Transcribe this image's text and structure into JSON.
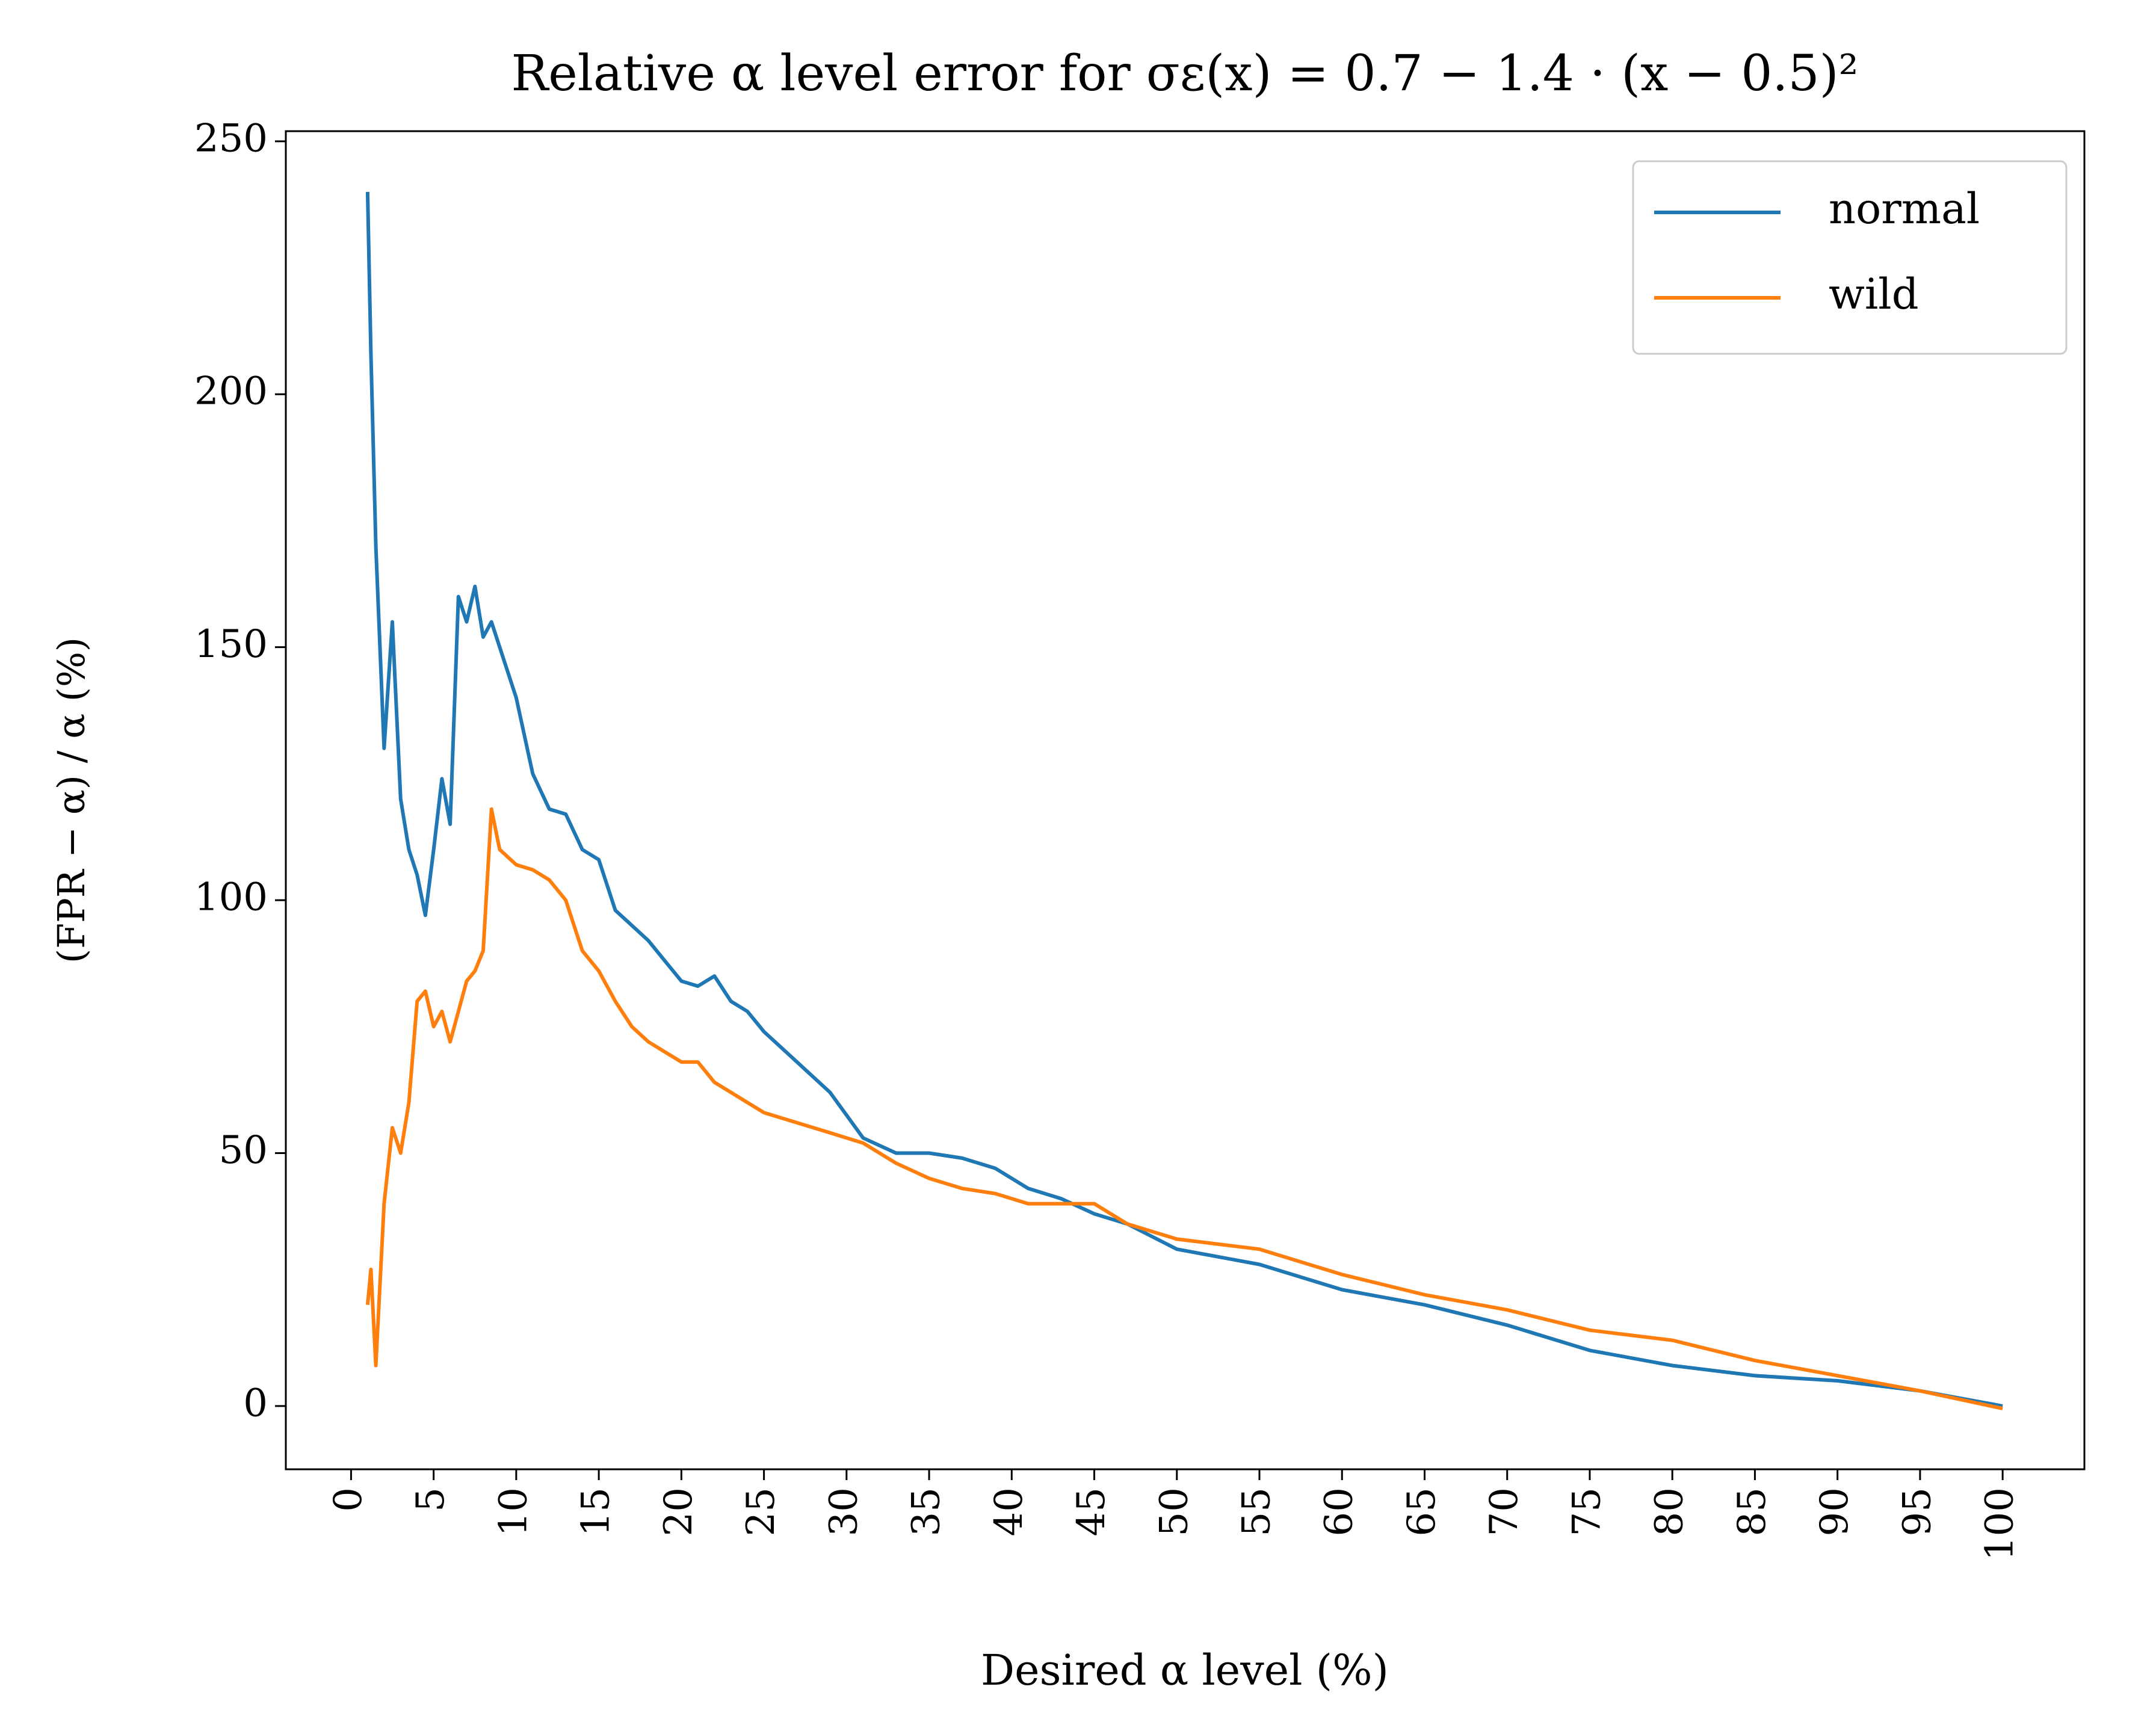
{
  "chart_data": {
    "type": "line",
    "title": "Relative α level error for σε(x) = 0.7 − 1.4 · (x − 0.5)²",
    "xlabel": "Desired α level (%)",
    "ylabel": "(FPR − α) / α (%)",
    "x": [
      1,
      1.2,
      1.5,
      2,
      2.5,
      3,
      3.5,
      4,
      4.5,
      5,
      5.5,
      6,
      6.5,
      7,
      7.5,
      8,
      8.5,
      9,
      10,
      11,
      12,
      13,
      14,
      15,
      16,
      17,
      18,
      19,
      20,
      21,
      22,
      23,
      24,
      25,
      27,
      29,
      31,
      33,
      35,
      37,
      39,
      41,
      43,
      45,
      47,
      50,
      55,
      60,
      65,
      70,
      75,
      80,
      85,
      90,
      95,
      100
    ],
    "series": [
      {
        "name": "normal",
        "color": "#1f77b4",
        "values": [
          240,
          208,
          170,
          130,
          155,
          120,
          110,
          105,
          97,
          110,
          124,
          115,
          160,
          155,
          162,
          152,
          155,
          150,
          140,
          125,
          118,
          117,
          110,
          108,
          98,
          95,
          92,
          88,
          84,
          83,
          85,
          80,
          78,
          74,
          68,
          62,
          53,
          50,
          50,
          49,
          47,
          43,
          41,
          38,
          36,
          31,
          28,
          23,
          20,
          16,
          11,
          8,
          6,
          5,
          3,
          0
        ]
      },
      {
        "name": "wild",
        "color": "#ff7f0e",
        "values": [
          20,
          27,
          8,
          40,
          55,
          50,
          60,
          80,
          82,
          75,
          78,
          72,
          78,
          84,
          86,
          90,
          118,
          110,
          107,
          106,
          104,
          100,
          90,
          86,
          80,
          75,
          72,
          70,
          68,
          68,
          64,
          62,
          60,
          58,
          56,
          54,
          52,
          48,
          45,
          43,
          42,
          40,
          40,
          40,
          36,
          33,
          31,
          26,
          22,
          19,
          15,
          13,
          9,
          6,
          3,
          -0.5
        ]
      }
    ],
    "xlim": [
      -3.95,
      104.95
    ],
    "xticks": [
      0,
      5,
      10,
      15,
      20,
      25,
      30,
      35,
      40,
      45,
      50,
      55,
      60,
      65,
      70,
      75,
      80,
      85,
      90,
      95,
      100
    ],
    "ylim": [
      -12.5,
      252
    ],
    "yticks": [
      0,
      50,
      100,
      150,
      200,
      250
    ],
    "grid": false,
    "legend": "upper right"
  }
}
